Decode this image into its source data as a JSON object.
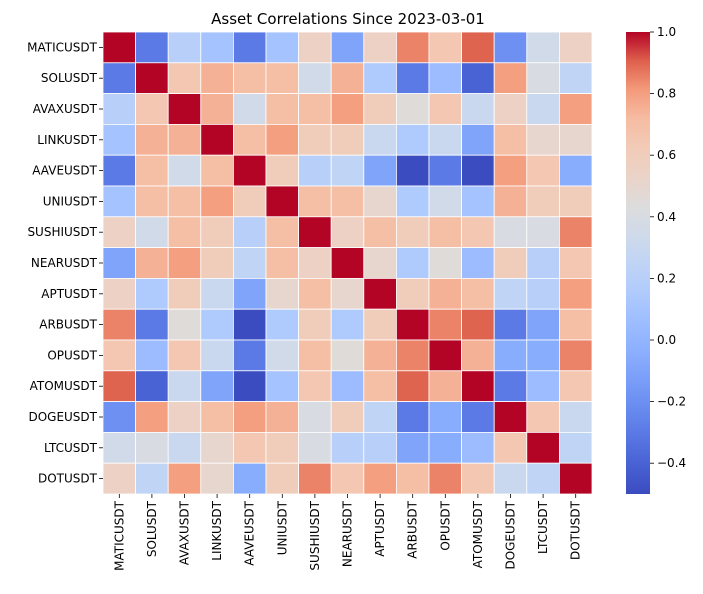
{
  "chart_data": {
    "type": "heatmap",
    "title": "Asset Correlations Since 2023-03-01",
    "labels": [
      "MATICUSDT",
      "SOLUSDT",
      "AVAXUSDT",
      "LINKUSDT",
      "AAVEUSDT",
      "UNIUSDT",
      "SUSHIUSDT",
      "NEARUSDT",
      "APTUSDT",
      "ARBUSDT",
      "OPUSDT",
      "ATOMUSDT",
      "DOGEUSDT",
      "LTCUSDT",
      "DOTUSDT"
    ],
    "matrix": [
      [
        1.0,
        -0.3,
        0.2,
        0.1,
        -0.3,
        0.1,
        0.55,
        -0.1,
        0.55,
        0.85,
        0.65,
        0.9,
        -0.2,
        0.35,
        0.55
      ],
      [
        -0.3,
        1.0,
        0.65,
        0.75,
        0.7,
        0.7,
        0.35,
        0.75,
        0.15,
        -0.3,
        0.05,
        -0.4,
        0.8,
        0.4,
        0.25
      ],
      [
        0.2,
        0.65,
        1.0,
        0.75,
        0.35,
        0.7,
        0.7,
        0.8,
        0.6,
        0.45,
        0.65,
        0.3,
        0.55,
        0.3,
        0.8
      ],
      [
        0.1,
        0.75,
        0.75,
        1.0,
        0.7,
        0.8,
        0.6,
        0.6,
        0.3,
        0.15,
        0.3,
        -0.1,
        0.7,
        0.5,
        0.5
      ],
      [
        -0.3,
        0.7,
        0.35,
        0.7,
        1.0,
        0.6,
        0.2,
        0.25,
        -0.1,
        -0.5,
        -0.3,
        -0.5,
        0.8,
        0.65,
        -0.05
      ],
      [
        0.1,
        0.7,
        0.7,
        0.8,
        0.6,
        1.0,
        0.7,
        0.7,
        0.5,
        0.15,
        0.35,
        0.1,
        0.75,
        0.6,
        0.6
      ],
      [
        0.55,
        0.35,
        0.7,
        0.6,
        0.2,
        0.7,
        1.0,
        0.55,
        0.7,
        0.6,
        0.7,
        0.65,
        0.4,
        0.4,
        0.85
      ],
      [
        -0.1,
        0.75,
        0.8,
        0.6,
        0.25,
        0.7,
        0.55,
        1.0,
        0.5,
        0.15,
        0.45,
        0.05,
        0.6,
        0.2,
        0.65
      ],
      [
        0.55,
        0.15,
        0.6,
        0.3,
        -0.1,
        0.5,
        0.7,
        0.5,
        1.0,
        0.6,
        0.75,
        0.7,
        0.25,
        0.2,
        0.8
      ],
      [
        0.85,
        -0.3,
        0.45,
        0.15,
        -0.5,
        0.15,
        0.6,
        0.15,
        0.6,
        1.0,
        0.85,
        0.9,
        -0.3,
        -0.1,
        0.7
      ],
      [
        0.65,
        0.05,
        0.65,
        0.3,
        -0.3,
        0.35,
        0.7,
        0.45,
        0.75,
        0.85,
        1.0,
        0.75,
        -0.05,
        -0.05,
        0.85
      ],
      [
        0.9,
        -0.4,
        0.3,
        -0.1,
        -0.5,
        0.1,
        0.65,
        0.05,
        0.7,
        0.9,
        0.75,
        1.0,
        -0.3,
        0.05,
        0.65
      ],
      [
        -0.2,
        0.8,
        0.55,
        0.7,
        0.8,
        0.75,
        0.4,
        0.6,
        0.25,
        -0.3,
        -0.05,
        -0.3,
        1.0,
        0.65,
        0.3
      ],
      [
        0.35,
        0.4,
        0.3,
        0.5,
        0.65,
        0.6,
        0.4,
        0.2,
        0.2,
        -0.1,
        -0.05,
        0.05,
        0.65,
        1.0,
        0.25
      ],
      [
        0.55,
        0.25,
        0.8,
        0.5,
        -0.05,
        0.6,
        0.85,
        0.65,
        0.8,
        0.7,
        0.85,
        0.65,
        0.3,
        0.25,
        1.0
      ]
    ],
    "vmin": -0.5,
    "vmax": 1.0,
    "colormap": "coolwarm",
    "colorbar_ticks": [
      1.0,
      0.8,
      0.6,
      0.4,
      0.2,
      0.0,
      -0.2,
      -0.4
    ],
    "colorbar_tick_labels": [
      "1.0",
      "0.8",
      "0.6",
      "0.4",
      "0.2",
      "0.0",
      "−0.2",
      "−0.4"
    ],
    "cell_border_color": "#ffffff"
  }
}
